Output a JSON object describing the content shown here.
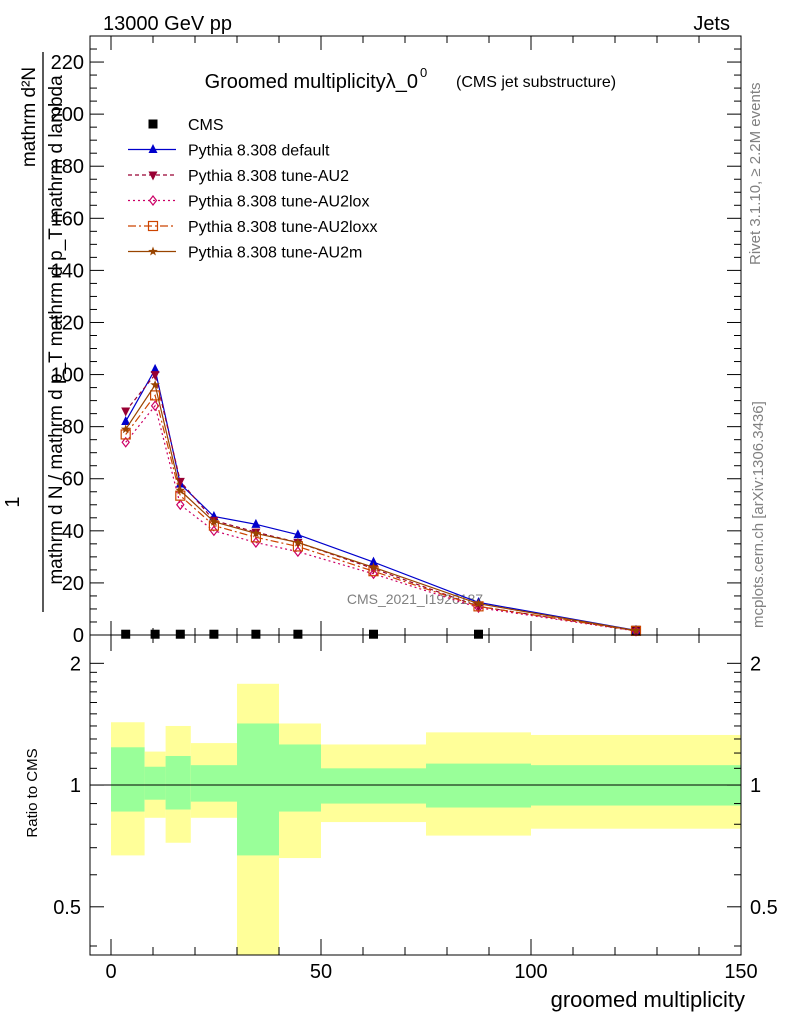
{
  "header": {
    "left": "13000 GeV pp",
    "right": "Jets"
  },
  "side_labels": {
    "rivet": "Rivet 3.1.10, ≥ 2.2M events",
    "mcplots": "mcplots.cern.ch [arXiv:1306.3436]"
  },
  "watermark": "CMS_2021_I1920187",
  "colors": {
    "cms": "#000000",
    "default": "#0000cc",
    "au2": "#990033",
    "au2lox": "#cc0066",
    "au2loxx": "#cc4400",
    "au2m": "#994400",
    "band_inner": "#99ff99",
    "band_outer": "#ffff99"
  },
  "chart_data": [
    {
      "type": "line",
      "title_main": "Groomed multiplicityλ_0",
      "title_sup": "0",
      "title_sub": "(CMS jet substructure)",
      "ylabel_top": "1",
      "ylabel_num": "mathrm d²N",
      "ylabel_den": "mathrm d N / mathrm d p_T mathrm d p_T mathrm d lambda",
      "xlim": [
        -5,
        150
      ],
      "ylim": [
        0,
        230
      ],
      "yticks": [
        0,
        20,
        40,
        60,
        80,
        100,
        120,
        140,
        160,
        180,
        200,
        220
      ],
      "x": [
        3.5,
        10.5,
        16.5,
        24.5,
        34.5,
        44.5,
        62.5,
        87.5,
        125
      ],
      "series": [
        {
          "name": "CMS",
          "key": "cms",
          "marker": "square",
          "values": [
            0.3,
            0.3,
            0.3,
            0.3,
            0.3,
            0.3,
            0.3,
            0.3,
            1.8
          ]
        },
        {
          "name": "Pythia 8.308 default",
          "key": "default",
          "marker": "triangle-up",
          "dash": "",
          "values": [
            82,
            102,
            58,
            45.5,
            42.5,
            38.5,
            28,
            12.5,
            1.8
          ]
        },
        {
          "name": "Pythia 8.308 tune-AU2",
          "key": "au2",
          "marker": "triangle-down",
          "dash": "4,3",
          "values": [
            86,
            100,
            59,
            44,
            39.5,
            35.5,
            25.5,
            11,
            1.6
          ]
        },
        {
          "name": "Pythia 8.308 tune-AU2lox",
          "key": "au2lox",
          "marker": "diamond-open",
          "dash": "2,3",
          "values": [
            74,
            88,
            50,
            40,
            35.5,
            32,
            23.5,
            10.5,
            1.5
          ]
        },
        {
          "name": "Pythia 8.308 tune-AU2loxx",
          "key": "au2loxx",
          "marker": "square-open",
          "dash": "8,3,2,3",
          "values": [
            77,
            92,
            53.5,
            42,
            37.5,
            34,
            24.5,
            11,
            1.6
          ]
        },
        {
          "name": "Pythia 8.308 tune-AU2m",
          "key": "au2m",
          "marker": "star",
          "dash": "",
          "values": [
            79,
            96,
            55.5,
            43.5,
            39,
            35.5,
            26,
            12,
            1.7
          ]
        }
      ]
    },
    {
      "type": "area",
      "ylabel": "Ratio to CMS",
      "xlabel": "groomed multiplicity",
      "xlim": [
        -5,
        150
      ],
      "ylim": [
        0.38,
        2.35
      ],
      "log_y": true,
      "yticks": [
        0.5,
        1,
        2
      ],
      "ytick_labels": [
        "0.5",
        "1",
        "2"
      ],
      "xticks": [
        0,
        50,
        100,
        150
      ],
      "xtick_labels": [
        "0",
        "50",
        "100",
        "150"
      ],
      "bins": [
        {
          "lo": 0,
          "hi": 8,
          "inner": [
            0.86,
            1.24
          ],
          "outer": [
            0.67,
            1.43
          ]
        },
        {
          "lo": 8,
          "hi": 13,
          "inner": [
            0.92,
            1.11
          ],
          "outer": [
            0.83,
            1.21
          ]
        },
        {
          "lo": 13,
          "hi": 19,
          "inner": [
            0.87,
            1.18
          ],
          "outer": [
            0.72,
            1.4
          ]
        },
        {
          "lo": 19,
          "hi": 30,
          "inner": [
            0.91,
            1.12
          ],
          "outer": [
            0.83,
            1.27
          ]
        },
        {
          "lo": 30,
          "hi": 40,
          "inner": [
            0.67,
            1.42
          ],
          "outer": [
            0.35,
            1.78
          ]
        },
        {
          "lo": 40,
          "hi": 50,
          "inner": [
            0.86,
            1.26
          ],
          "outer": [
            0.66,
            1.42
          ]
        },
        {
          "lo": 50,
          "hi": 75,
          "inner": [
            0.9,
            1.1
          ],
          "outer": [
            0.81,
            1.26
          ]
        },
        {
          "lo": 75,
          "hi": 100,
          "inner": [
            0.88,
            1.13
          ],
          "outer": [
            0.75,
            1.35
          ]
        },
        {
          "lo": 100,
          "hi": 150,
          "inner": [
            0.89,
            1.12
          ],
          "outer": [
            0.78,
            1.33
          ]
        }
      ]
    }
  ]
}
